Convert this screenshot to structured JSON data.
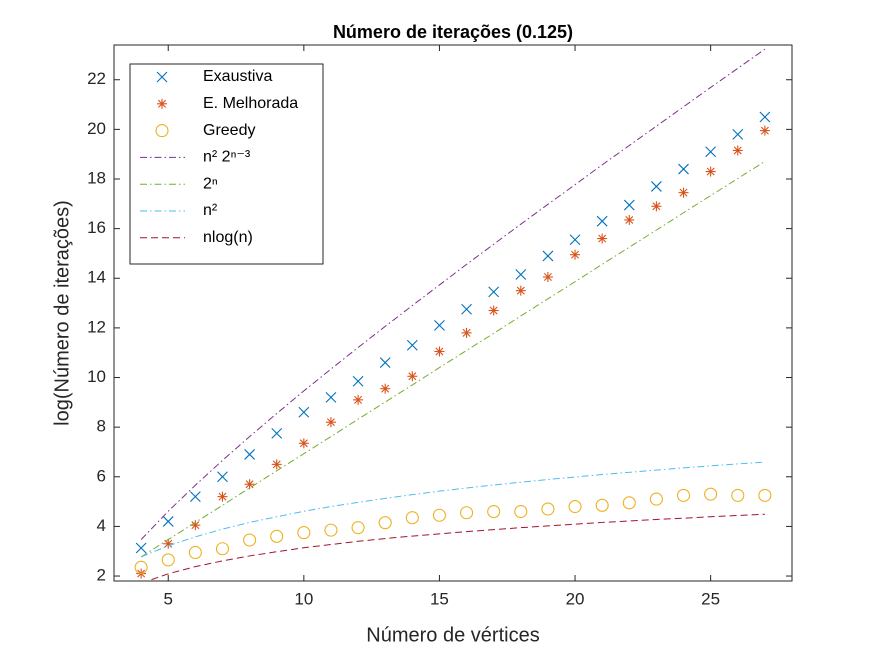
{
  "chart_data": {
    "type": "scatter",
    "title": "Número de iterações (0.125)",
    "x_label": "Número de vértices",
    "y_label": "log(Número de iterações)",
    "x": [
      4,
      5,
      6,
      7,
      8,
      9,
      10,
      11,
      12,
      13,
      14,
      15,
      16,
      17,
      18,
      19,
      20,
      21,
      22,
      23,
      24,
      25,
      26,
      27
    ],
    "xlim": [
      3,
      28
    ],
    "ylim": [
      1.8,
      23.4
    ],
    "xticks": [
      5,
      10,
      15,
      20,
      25
    ],
    "yticks": [
      2,
      4,
      6,
      8,
      10,
      12,
      14,
      16,
      18,
      20,
      22
    ],
    "legend": "upper-left",
    "series": [
      {
        "name": "Exaustiva",
        "color": "#0072BD",
        "marker": "x",
        "values": [
          3.13,
          4.2,
          5.2,
          6.0,
          6.9,
          7.75,
          8.6,
          9.2,
          9.85,
          10.6,
          11.3,
          12.1,
          12.75,
          13.45,
          14.15,
          14.9,
          15.55,
          16.3,
          16.95,
          17.7,
          18.4,
          19.1,
          19.8,
          20.5
        ]
      },
      {
        "name": "E. Melhorada",
        "color": "#D95319",
        "marker": "*",
        "values": [
          2.1,
          3.3,
          4.05,
          5.2,
          5.7,
          6.5,
          7.35,
          8.2,
          9.1,
          9.55,
          10.05,
          11.05,
          11.8,
          12.7,
          13.5,
          14.05,
          14.95,
          15.6,
          16.35,
          16.9,
          17.45,
          18.3,
          19.15,
          19.95
        ]
      },
      {
        "name": "Greedy",
        "color": "#EDB120",
        "marker": "o",
        "values": [
          2.35,
          2.65,
          2.95,
          3.1,
          3.45,
          3.6,
          3.75,
          3.85,
          3.95,
          4.15,
          4.35,
          4.45,
          4.55,
          4.6,
          4.6,
          4.7,
          4.8,
          4.85,
          4.95,
          5.1,
          5.25,
          5.3,
          5.25,
          5.25
        ]
      },
      {
        "name": "n² 2ⁿ⁻³",
        "color": "#7E2F8E",
        "linestyle": "dashdot",
        "values": [
          3.47,
          4.61,
          5.66,
          6.66,
          7.62,
          8.55,
          9.46,
          10.34,
          11.21,
          12.06,
          12.9,
          13.73,
          14.56,
          15.37,
          16.18,
          16.98,
          17.77,
          18.57,
          19.35,
          20.13,
          20.91,
          21.69,
          22.46,
          23.23
        ]
      },
      {
        "name": "2ⁿ",
        "color": "#77AC30",
        "linestyle": "dashdot",
        "values": [
          2.77,
          3.47,
          4.16,
          4.85,
          5.55,
          6.24,
          6.93,
          7.62,
          8.32,
          9.01,
          9.7,
          10.4,
          11.09,
          11.78,
          12.48,
          13.17,
          13.86,
          14.56,
          15.25,
          15.94,
          16.64,
          17.33,
          18.02,
          18.71
        ]
      },
      {
        "name": "n²",
        "color": "#4DBEEE",
        "linestyle": "dashdot",
        "values": [
          2.77,
          3.22,
          3.58,
          3.89,
          4.16,
          4.39,
          4.61,
          4.8,
          4.97,
          5.13,
          5.28,
          5.42,
          5.55,
          5.67,
          5.78,
          5.89,
          5.99,
          6.09,
          6.18,
          6.27,
          6.36,
          6.44,
          6.52,
          6.59
        ]
      },
      {
        "name": "nlog(n)",
        "color": "#A2142F",
        "linestyle": "dashed",
        "values": [
          1.71,
          2.09,
          2.38,
          2.61,
          2.81,
          2.98,
          3.14,
          3.27,
          3.4,
          3.51,
          3.61,
          3.7,
          3.79,
          3.87,
          3.95,
          4.02,
          4.09,
          4.16,
          4.22,
          4.28,
          4.33,
          4.39,
          4.44,
          4.49
        ]
      }
    ]
  }
}
